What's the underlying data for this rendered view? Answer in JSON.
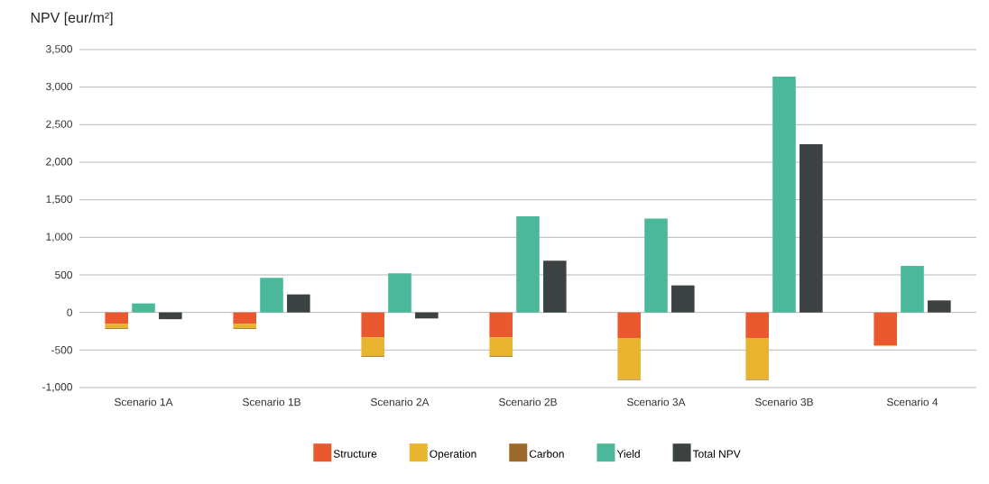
{
  "chart_data": {
    "type": "bar",
    "ylabel": "NPV [eur/m²]",
    "categories": [
      "Scenario 1A",
      "Scenario 1B",
      "Scenario 2A",
      "Scenario 2B",
      "Scenario 3A",
      "Scenario 3B",
      "Scenario 4"
    ],
    "series": [
      {
        "name": "Structure",
        "color": "#e9582e",
        "base": [
          0,
          0,
          0,
          0,
          0,
          0,
          0
        ],
        "values": [
          -150,
          -150,
          -330,
          -330,
          -340,
          -340,
          -440
        ]
      },
      {
        "name": "Operation",
        "color": "#e8b42f",
        "base": [
          -150,
          -150,
          -330,
          -330,
          -340,
          -340,
          -440
        ],
        "values": [
          -60,
          -60,
          -250,
          -250,
          -550,
          -550,
          -10
        ]
      },
      {
        "name": "Carbon",
        "color": "#9b6a2b",
        "base": [
          -210,
          -210,
          -580,
          -580,
          -890,
          -890,
          null
        ],
        "values": [
          -10,
          -10,
          -10,
          -10,
          -10,
          -10,
          null
        ]
      },
      {
        "name": "Yield",
        "color": "#4bb89a",
        "values": [
          120,
          460,
          520,
          1280,
          1250,
          3140,
          620
        ]
      },
      {
        "name": "Total NPV",
        "color": "#3c4142",
        "values": [
          -90,
          240,
          -80,
          690,
          360,
          2240,
          160
        ]
      }
    ],
    "ylim": [
      -1000,
      3500
    ],
    "yticks": [
      {
        "value": -1000,
        "label": "-1,000"
      },
      {
        "value": -500,
        "label": "-500"
      },
      0,
      {
        "value": 500,
        "label": "500"
      },
      {
        "value": 1000,
        "label": "1,000"
      },
      {
        "value": 1500,
        "label": "1,500"
      },
      {
        "value": 2000,
        "label": "2,000"
      },
      {
        "value": 2500,
        "label": "2,500"
      },
      {
        "value": 3000,
        "label": "3,000"
      },
      {
        "value": 3500,
        "label": "3,500"
      }
    ],
    "grid": "y",
    "legend": "bottom"
  }
}
